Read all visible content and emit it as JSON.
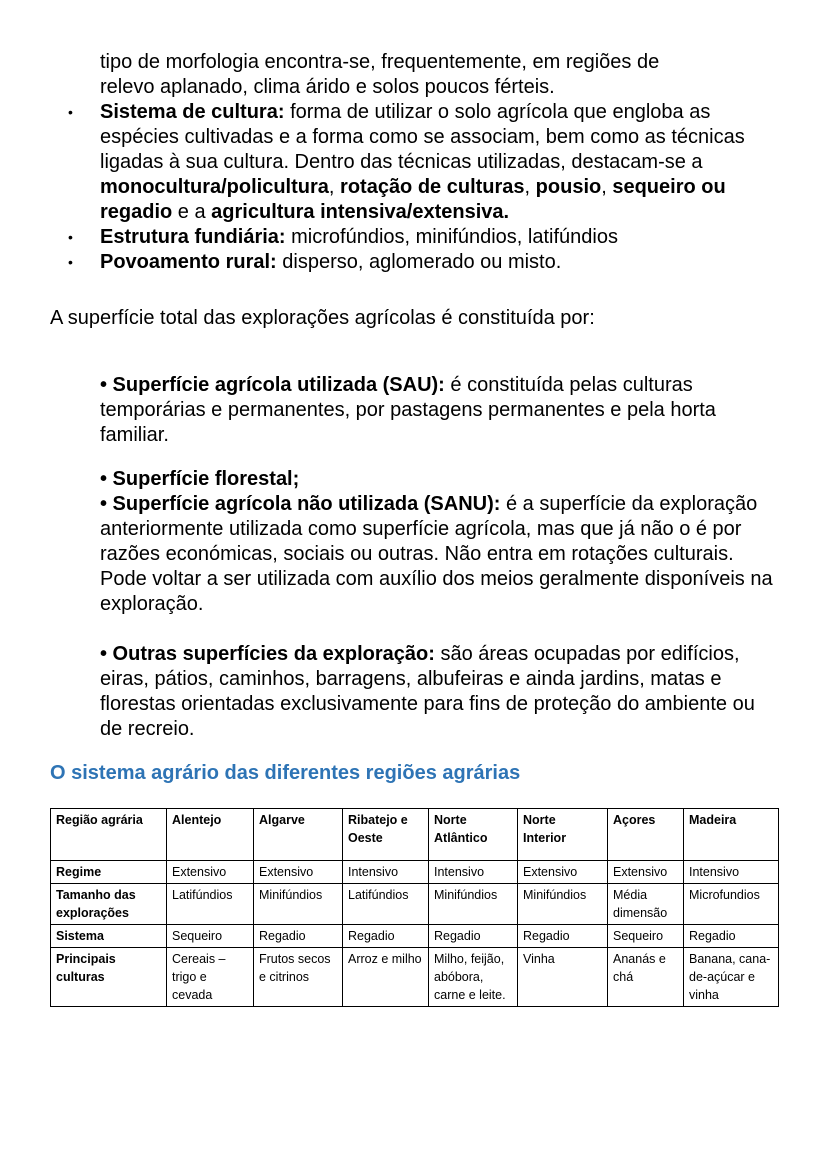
{
  "intro_lines": [
    "tipo de morfologia encontra-se, frequentemente, em regiões de",
    "relevo aplanado, clima árido e solos poucos férteis."
  ],
  "bullets": [
    {
      "term": "Sistema de cultura:",
      "text": " forma de utilizar o solo agrícola que engloba as espécies cultivadas e a forma como se associam, bem como as técnicas ligadas à sua cultura. Dentro das técnicas utilizadas, destacam-se a ",
      "b1": "monocultura/policultura",
      ", ": "",
      "b2": "rotação de culturas",
      "b3": "pousio",
      "b4": "sequeiro ou regadio",
      "b5": "agricultura intensiva/extensiva."
    },
    {
      "term": "Estrutura fundiária:",
      "text": " microfúndios, minifúndios, latifúndios"
    },
    {
      "term": "Povoamento rural:",
      "text": " disperso, aglomerado ou misto."
    }
  ],
  "paragraph": "A superfície total das explorações agrícolas é constituída por:",
  "items": [
    {
      "term": "• Superfície agrícola utilizada (SAU):",
      "text": " é constituída pelas culturas temporárias e permanentes, por pastagens permanentes e pela horta familiar."
    },
    {
      "term": "• Superfície florestal;",
      "text": ""
    },
    {
      "term": "• Superfície agrícola não utilizada (SANU):",
      "text": " é a superfície da exploração anteriormente utilizada como superfície agrícola, mas que já não o é por razões económicas, sociais ou outras. Não entra em rotações culturais. Pode voltar a ser utilizada com auxílio dos meios geralmente disponíveis na exploração."
    },
    {
      "term": "• Outras superfícies da exploração:",
      "text": " são áreas ocupadas por edifícios, eiras, pátios, caminhos, barragens, albufeiras e ainda jardins, matas e florestas orientadas exclusivamente para fins de proteção do ambiente ou de recreio."
    }
  ],
  "section_title": "O sistema agrário das diferentes regiões agrárias",
  "table": {
    "header": [
      "Região agrária",
      "Alentejo",
      "Algarve",
      "Ribatejo e Oeste",
      "Norte Atlântico",
      "Norte Interior",
      "Açores",
      "Madeira"
    ],
    "rows": [
      [
        "Regime",
        "Extensivo",
        "Extensivo",
        "Intensivo",
        "Intensivo",
        "Extensivo",
        "Extensivo",
        "Intensivo"
      ],
      [
        "Tamanho das explorações",
        "Latifúndios",
        "Minifúndios",
        "Latifúndios",
        "Minifúndios",
        "Minifúndios",
        "Média dimensão",
        "Microfundios"
      ],
      [
        "Sistema",
        "Sequeiro",
        "Regadio",
        "Regadio",
        "Regadio",
        "Regadio",
        "Sequeiro",
        "Regadio"
      ],
      [
        "Principais culturas",
        "Cereais – trigo e cevada",
        "Frutos secos e citrinos",
        "Arroz e milho",
        "Milho, feijão, abóbora, carne e leite.",
        "Vinha",
        "Ananás e chá",
        "Banana, cana-de-açúcar e vinha"
      ]
    ]
  }
}
